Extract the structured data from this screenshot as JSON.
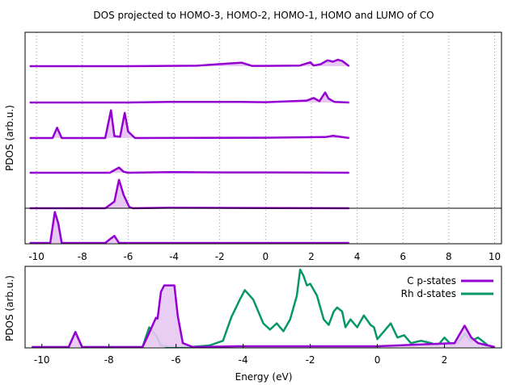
{
  "chart_data": [
    {
      "type": "area",
      "title": "DOS projected to HOMO-3, HOMO-2, HOMO-1, HOMO and LUMO of CO",
      "xlabel": "",
      "ylabel": "PDOS (arb.u.)",
      "xlim": [
        -10.5,
        10.3
      ],
      "xticks": [
        "-10",
        "-8",
        "-6",
        "-4",
        "-2",
        "0",
        "2",
        "4",
        "6",
        "8",
        "10"
      ],
      "grid": "vertical dotted",
      "legend": "none",
      "color": "#9400d3",
      "series_note": "stacked offset curves, top to bottom",
      "series": [
        {
          "x": [
            -10.3,
            -6.0,
            -3.0,
            -1.05,
            -0.6,
            0.0,
            1.5,
            1.95,
            2.1,
            2.4,
            2.7,
            2.95,
            3.15,
            3.35,
            3.65
          ],
          "values": [
            0,
            0,
            0.08,
            0.55,
            0.05,
            0.05,
            0.1,
            0.6,
            0.1,
            0.3,
            0.9,
            0.7,
            1.0,
            0.8,
            0
          ]
        },
        {
          "x": [
            -10.3,
            -6.0,
            -4.2,
            -1.05,
            0.0,
            1.8,
            2.1,
            2.35,
            2.6,
            2.75,
            3.0,
            3.65
          ],
          "values": [
            0,
            0,
            0.1,
            0.1,
            0.05,
            0.3,
            0.7,
            0.2,
            1.55,
            0.6,
            0.1,
            0
          ]
        },
        {
          "x": [
            -10.3,
            -9.3,
            -9.1,
            -8.9,
            -7.0,
            -6.75,
            -6.6,
            -6.35,
            -6.15,
            -6.0,
            -5.7,
            0.0,
            2.6,
            2.95,
            3.65
          ],
          "values": [
            0,
            0,
            1.6,
            0,
            0,
            4.3,
            0.3,
            0.2,
            3.9,
            1.0,
            0,
            0.05,
            0.15,
            0.35,
            0
          ]
        },
        {
          "x": [
            -10.3,
            -6.8,
            -6.4,
            -6.2,
            -6.0,
            -4.2,
            -2.0,
            0.0,
            3.65
          ],
          "values": [
            0,
            0,
            0.8,
            0.15,
            0,
            0.1,
            0.05,
            0.05,
            0
          ]
        },
        {
          "x": [
            -10.3,
            -7.0,
            -6.6,
            -6.4,
            -6.2,
            -5.95,
            -5.8,
            -4.2,
            0.0,
            3.65
          ],
          "values": [
            0,
            0,
            1.5,
            6.4,
            3.0,
            0.3,
            0,
            0.1,
            0.05,
            0
          ]
        },
        {
          "x": [
            -10.3,
            -9.4,
            -9.2,
            -9.05,
            -8.9,
            -7.0,
            -6.75,
            -6.6,
            -6.4,
            3.65
          ],
          "values": [
            0,
            0,
            4.8,
            3.0,
            0,
            0,
            0.7,
            1.1,
            0,
            0
          ]
        }
      ]
    },
    {
      "type": "line",
      "title": "",
      "xlabel": "Energy  (eV)",
      "ylabel": "PDOS (arb.u.)",
      "xlim": [
        -10.5,
        3.7
      ],
      "ylim": [
        0,
        1.0
      ],
      "xticks": [
        "-10",
        "-8",
        "-6",
        "-4",
        "-2",
        "0",
        "2"
      ],
      "grid": "none",
      "legend": "top-right",
      "series": [
        {
          "name": "C p-states",
          "color": "#9400d3",
          "fill": "#e7c8f2",
          "x": [
            -10.3,
            -9.2,
            -9.0,
            -8.8,
            -7.0,
            -6.8,
            -6.6,
            -6.55,
            -6.45,
            -6.35,
            -6.2,
            -6.05,
            -5.95,
            -5.8,
            -5.5,
            -4.2,
            0.0,
            2.3,
            2.6,
            2.8,
            3.0,
            3.5
          ],
          "values": [
            0,
            0,
            0.19,
            0,
            0,
            0.18,
            0.37,
            0.36,
            0.7,
            0.78,
            0.78,
            0.78,
            0.4,
            0.05,
            0,
            0.01,
            0.01,
            0.05,
            0.27,
            0.12,
            0.05,
            0
          ]
        },
        {
          "name": "Rh d-states",
          "color": "#079669",
          "x": [
            -10.3,
            -9.2,
            -9.0,
            -8.8,
            -7.0,
            -6.8,
            -6.6,
            -6.45,
            -6.2,
            -6.0,
            -5.6,
            -5.0,
            -4.6,
            -4.35,
            -4.1,
            -3.95,
            -3.7,
            -3.4,
            -3.2,
            -3.0,
            -2.8,
            -2.6,
            -2.4,
            -2.3,
            -2.2,
            -2.1,
            -2.0,
            -1.8,
            -1.6,
            -1.45,
            -1.3,
            -1.2,
            -1.05,
            -0.95,
            -0.8,
            -0.6,
            -0.4,
            -0.2,
            -0.1,
            0.0,
            0.2,
            0.4,
            0.6,
            0.8,
            1.0,
            1.3,
            1.6,
            1.8,
            2.0,
            2.2,
            2.4,
            2.6,
            2.8,
            3.0,
            3.3,
            3.5
          ],
          "values": [
            0,
            0,
            0.19,
            0,
            0,
            0.25,
            0.15,
            0.02,
            0,
            0,
            0,
            0.02,
            0.08,
            0.38,
            0.6,
            0.72,
            0.6,
            0.3,
            0.22,
            0.3,
            0.2,
            0.35,
            0.65,
            0.98,
            0.9,
            0.78,
            0.8,
            0.65,
            0.35,
            0.28,
            0.45,
            0.5,
            0.45,
            0.25,
            0.35,
            0.25,
            0.4,
            0.28,
            0.25,
            0.1,
            0.2,
            0.3,
            0.12,
            0.15,
            0.05,
            0.08,
            0.05,
            0.02,
            0.12,
            0.03,
            0.05,
            0.17,
            0.08,
            0.12,
            0.02,
            0
          ]
        }
      ]
    }
  ]
}
